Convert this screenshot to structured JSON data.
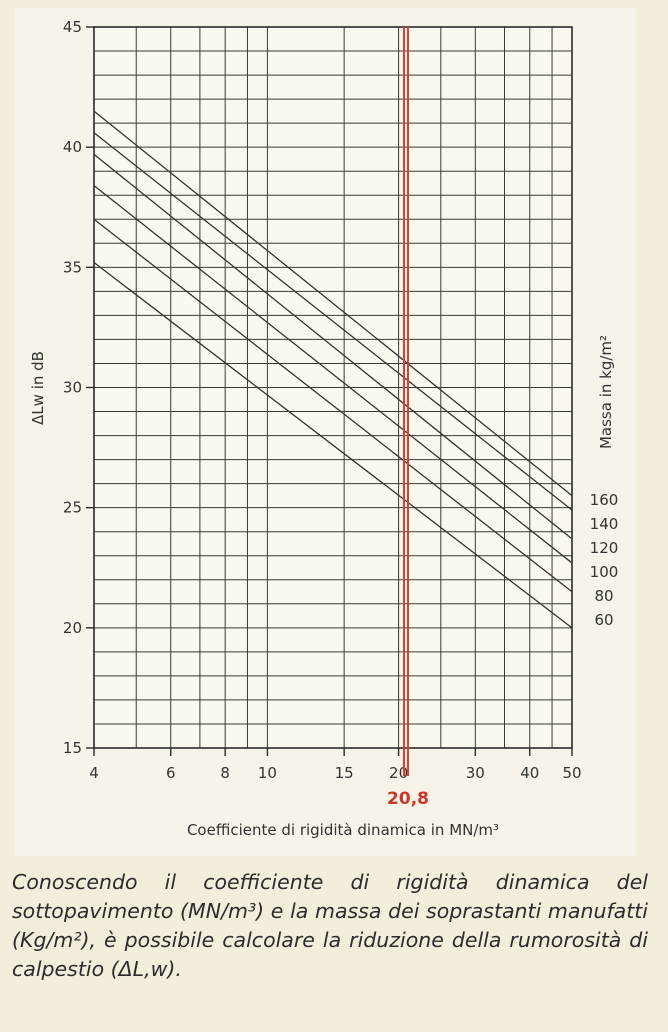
{
  "chart_data": {
    "type": "line",
    "xscale": "log",
    "xlim": [
      4,
      50
    ],
    "ylim": [
      15,
      45
    ],
    "xlabel": "Coefficiente di rigidità dinamica in MN/m³",
    "ylabel": "ΔLw in dB",
    "legend_title": "Massa in kg/m²",
    "x_ticks": [
      4,
      6,
      8,
      10,
      15,
      20,
      30,
      40,
      50
    ],
    "x_tick_labels": [
      "4",
      "6",
      "8",
      "10",
      "15",
      "20",
      "30",
      "40",
      "50"
    ],
    "y_ticks": [
      15,
      20,
      25,
      30,
      35,
      40,
      45
    ],
    "y_tick_labels": [
      "15",
      "20",
      "25",
      "30",
      "35",
      "40",
      "45"
    ],
    "series": [
      {
        "name": "160",
        "x": [
          4,
          50
        ],
        "y": [
          41.5,
          25.5
        ]
      },
      {
        "name": "140",
        "x": [
          4,
          50
        ],
        "y": [
          40.6,
          24.9
        ]
      },
      {
        "name": "120",
        "x": [
          4,
          50
        ],
        "y": [
          39.7,
          23.7
        ]
      },
      {
        "name": "100",
        "x": [
          4,
          50
        ],
        "y": [
          38.4,
          22.7
        ]
      },
      {
        "name": "80",
        "x": [
          4,
          50
        ],
        "y": [
          37.0,
          21.5
        ]
      },
      {
        "name": "60",
        "x": [
          4,
          50
        ],
        "y": [
          35.2,
          20.0
        ]
      }
    ],
    "marker": {
      "x": 20.8,
      "label": "20,8",
      "color": "#d8412f"
    },
    "grid": true,
    "legend_placement": "right"
  },
  "caption": "Conoscendo il coefficiente di rigidità dinamica del sottopavimento (MN/m³) e la massa dei soprastanti manufatti (Kg/m²), è possibile calcolare la riduzione della rumorosità di calpestio (ΔL,w)."
}
